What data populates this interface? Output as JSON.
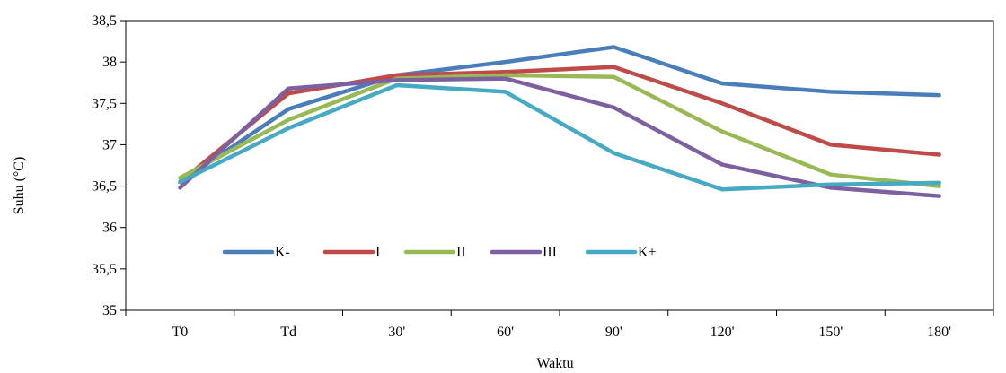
{
  "chart_data": {
    "type": "line",
    "title": "",
    "xlabel": "Waktu",
    "ylabel": "Suhu (°C)",
    "categories": [
      "T0",
      "Td",
      "30'",
      "60'",
      "90'",
      "120'",
      "150'",
      "180'"
    ],
    "ylim": [
      35,
      38.5
    ],
    "yticks": [
      "35",
      "35,5",
      "36",
      "36,5",
      "37",
      "37,5",
      "38",
      "38,5"
    ],
    "grid": false,
    "legend_position": "inside-bottom-left",
    "series": [
      {
        "name": "K-",
        "color": "#4a7ebb",
        "values": [
          36.55,
          37.43,
          37.84,
          38.0,
          38.18,
          37.74,
          37.64,
          37.6
        ]
      },
      {
        "name": "I",
        "color": "#be4b48",
        "values": [
          36.55,
          37.62,
          37.84,
          37.88,
          37.94,
          37.5,
          37.0,
          36.88
        ]
      },
      {
        "name": "II",
        "color": "#98b954",
        "values": [
          36.6,
          37.3,
          37.8,
          37.84,
          37.82,
          37.16,
          36.64,
          36.5
        ]
      },
      {
        "name": "III",
        "color": "#7d60a0",
        "values": [
          36.48,
          37.68,
          37.78,
          37.8,
          37.45,
          36.76,
          36.48,
          36.38
        ]
      },
      {
        "name": "K+",
        "color": "#46aac5",
        "values": [
          36.55,
          37.2,
          37.72,
          37.64,
          36.9,
          36.46,
          36.52,
          36.54
        ]
      }
    ]
  }
}
